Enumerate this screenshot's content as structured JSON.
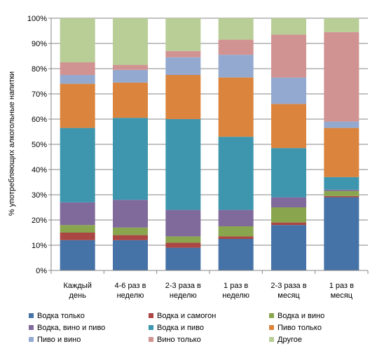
{
  "chart_data": {
    "type": "bar",
    "stacked": true,
    "percent": true,
    "ylabel": "% употребляющих алкогольные напитки",
    "ylim": [
      0,
      100
    ],
    "yticks": [
      "0%",
      "10%",
      "20%",
      "30%",
      "40%",
      "50%",
      "60%",
      "70%",
      "80%",
      "90%",
      "100%"
    ],
    "categories": [
      [
        "Каждый",
        "день"
      ],
      [
        "4-6 раз в",
        "неделю"
      ],
      [
        "2-3 раза в",
        "неделю"
      ],
      [
        "1 раз в",
        "неделю"
      ],
      [
        "2-3 раза в",
        "месяц"
      ],
      [
        "1 раз в",
        "месяц"
      ]
    ],
    "legend_position": "bottom",
    "series": [
      {
        "name": "Водка только",
        "color": "#4572A7",
        "values": [
          12,
          12,
          9,
          12.5,
          18,
          29
        ]
      },
      {
        "name": "Водка и самогон",
        "color": "#AA4643",
        "values": [
          3,
          2,
          2,
          1,
          1,
          0.5
        ]
      },
      {
        "name": "Водка и вино",
        "color": "#89A54E",
        "values": [
          3,
          3,
          2.5,
          4,
          6,
          2
        ]
      },
      {
        "name": "Водка, вино и пиво",
        "color": "#80699B",
        "values": [
          9,
          11,
          10.5,
          6.5,
          4,
          0.5
        ]
      },
      {
        "name": "Водка и пиво",
        "color": "#3D96AE",
        "values": [
          29.5,
          32.5,
          36,
          29,
          19.5,
          5
        ]
      },
      {
        "name": "Пиво только",
        "color": "#DB843D",
        "values": [
          17.5,
          14,
          17.5,
          23.5,
          17.5,
          19.5
        ]
      },
      {
        "name": "Пиво и вино",
        "color": "#93A9CF",
        "values": [
          3.5,
          5,
          7,
          9,
          10.5,
          2.5
        ]
      },
      {
        "name": "Вино только",
        "color": "#D19392",
        "values": [
          5,
          2,
          2.5,
          6,
          17,
          35.5
        ]
      },
      {
        "name": "Другое",
        "color": "#B9CD96",
        "values": [
          17.5,
          18.5,
          13,
          8.5,
          6.5,
          5.5
        ]
      }
    ]
  }
}
